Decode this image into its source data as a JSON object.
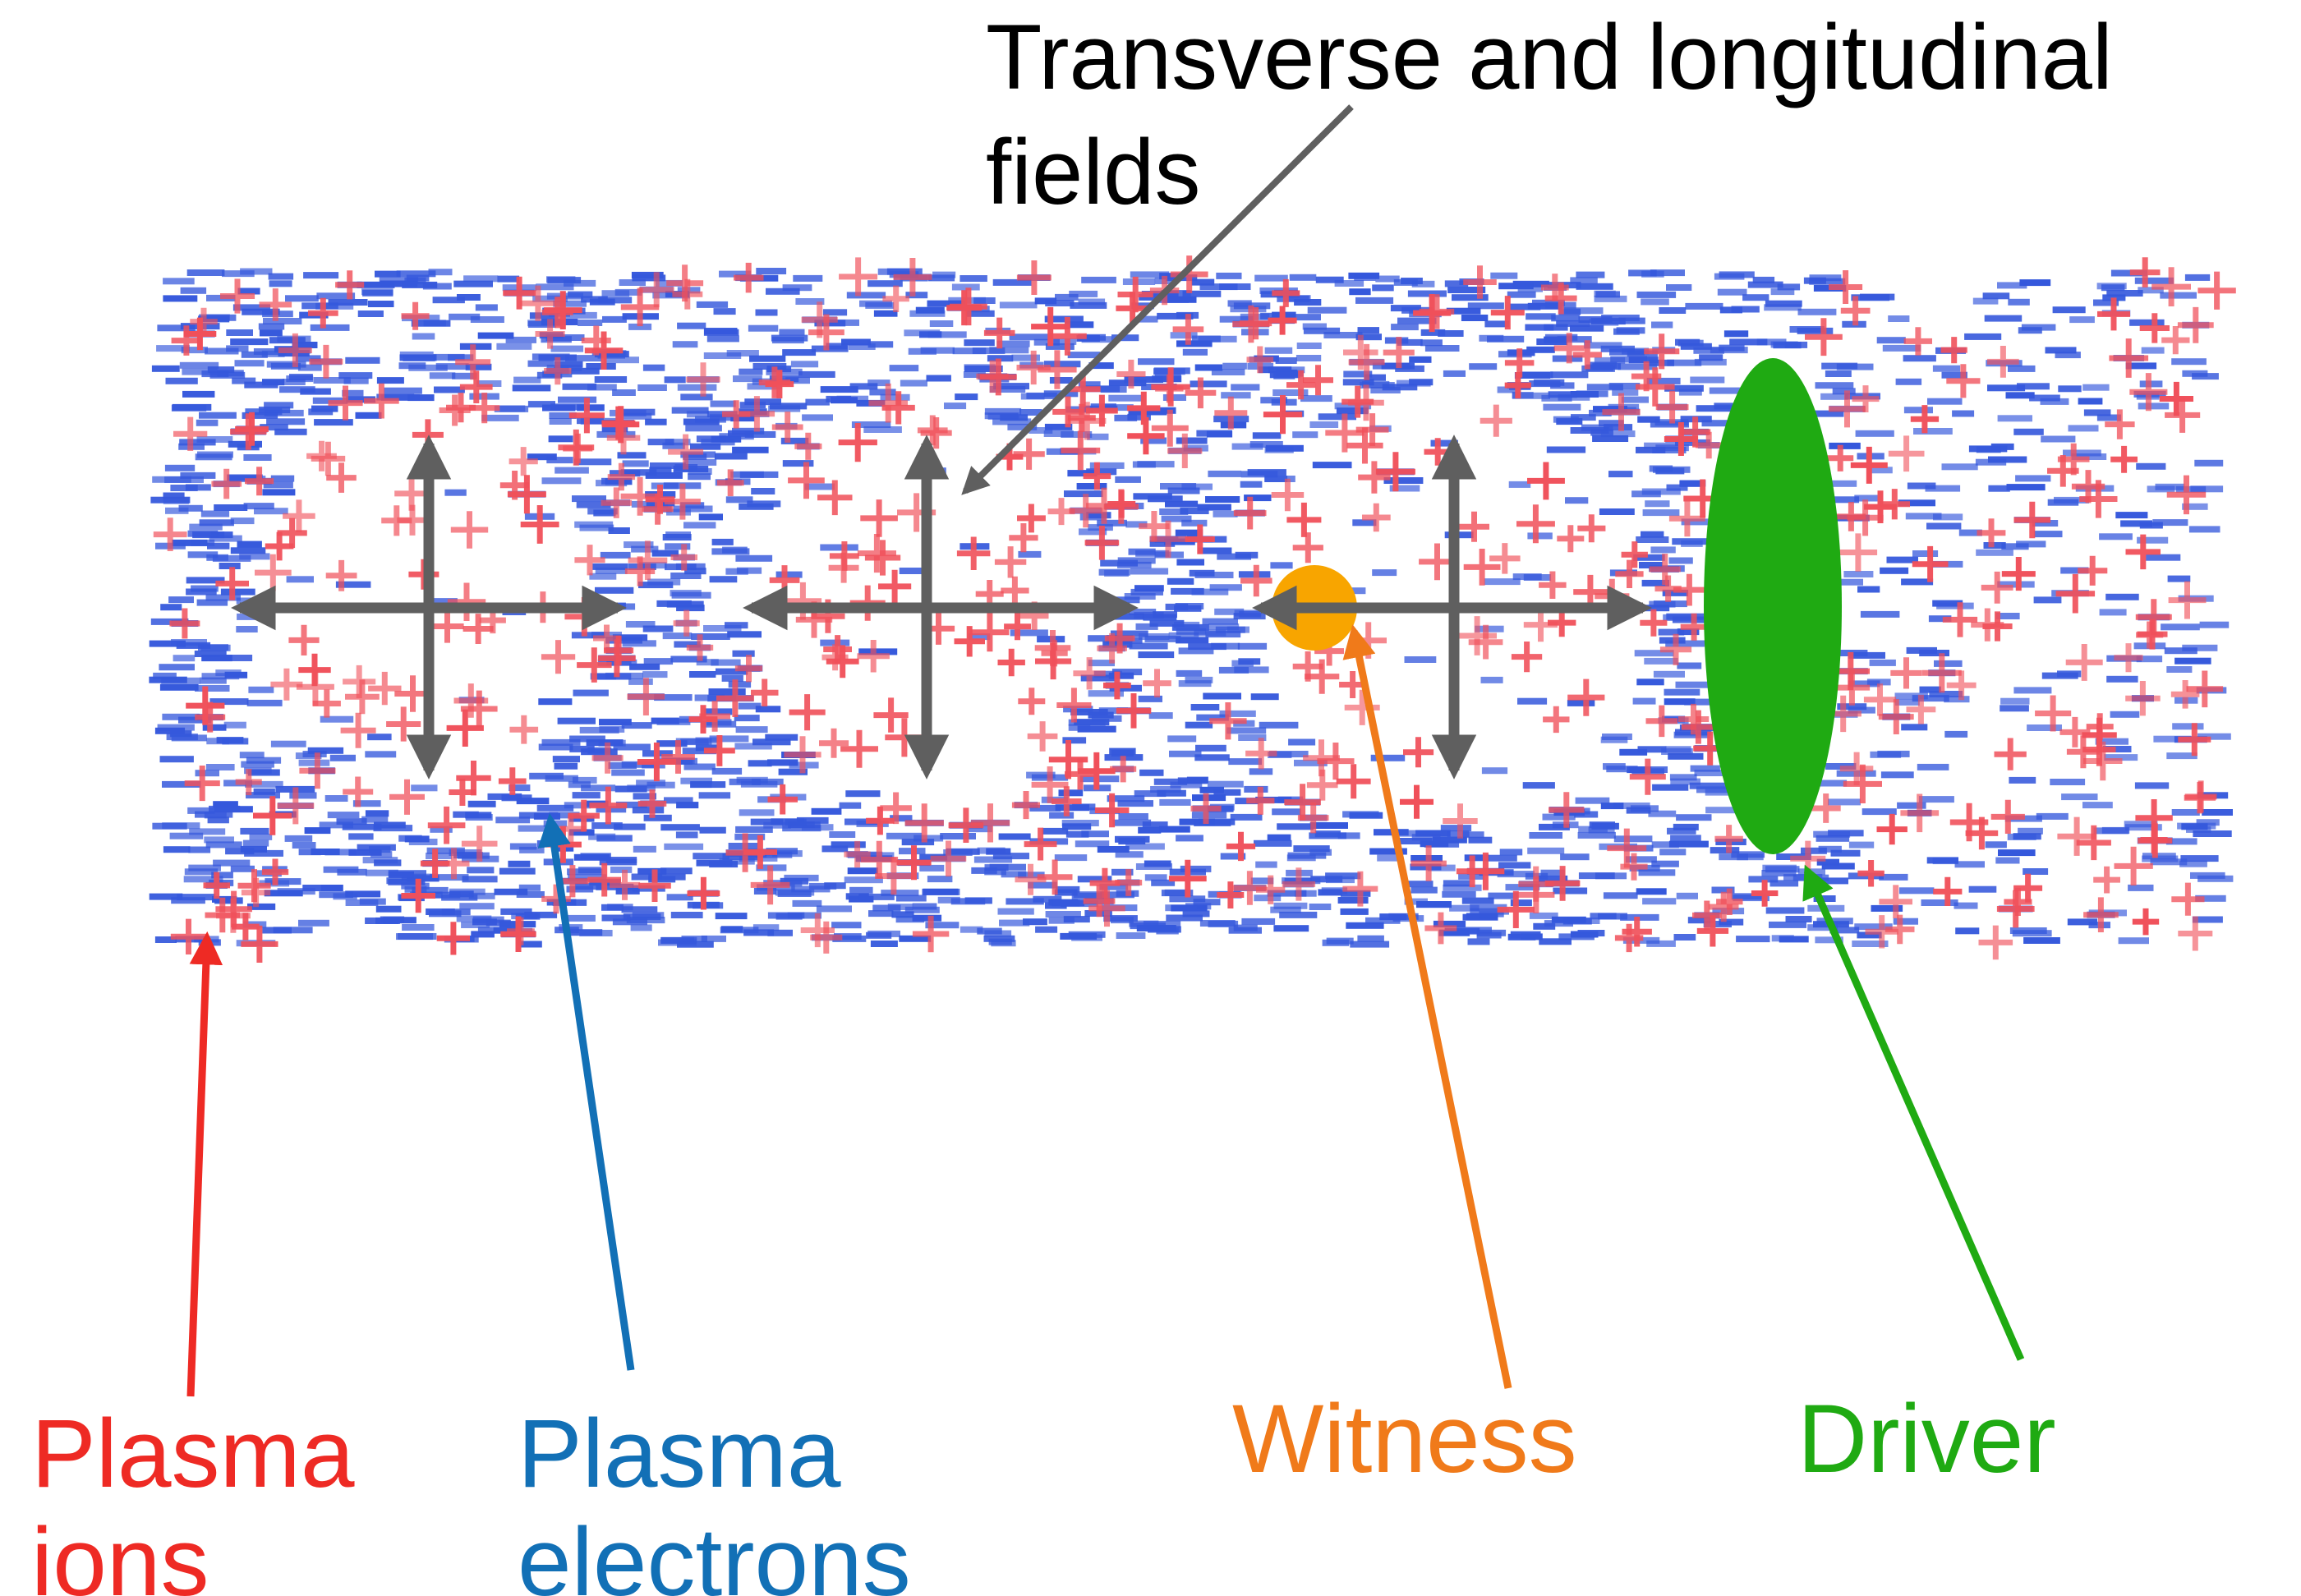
{
  "annotation": {
    "line1": "Transverse and longitudinal",
    "line2": "fields"
  },
  "labels": {
    "ions": {
      "line1": "Plasma",
      "line2": "ions"
    },
    "electrons": {
      "line1": "Plasma",
      "line2": "electrons"
    },
    "witness": "Witness",
    "driver": "Driver"
  },
  "colors": {
    "ions": "#ee2a24",
    "ion_marker": "#f0505a",
    "electrons": "#1270b6",
    "electron_marker": "#3558dc",
    "witness": "#f07a1a",
    "witness_bunch": "#f8a500",
    "driver": "#1faa12",
    "field_arrow": "#5f5f5f",
    "annotation_text": "#000000"
  }
}
